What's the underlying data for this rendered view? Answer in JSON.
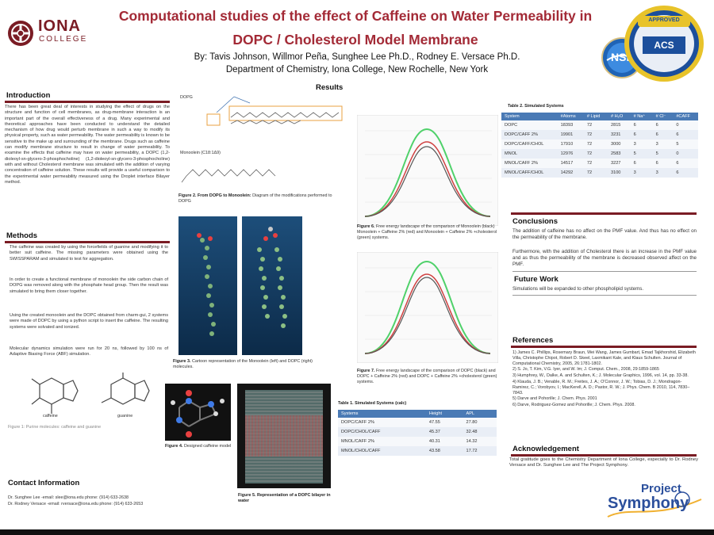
{
  "header": {
    "title_line1": "Computational studies of the effect of Caffeine on Water Permeability in",
    "title_line2": "DOPC / Cholesterol Model Membrane",
    "authors": "By: Tavis Johnson, Willmor Peña, Sunghee Lee Ph.D., Rodney E. Versace Ph.D.",
    "department": "Department of Chemistry, Iona College, New Rochelle, New York",
    "logo_left_line1": "IONA",
    "logo_left_line2": "COLLEGE",
    "logo_acs_text": "ACS",
    "logo_nsf_text": "NSF",
    "logo_approved_text": "APPROVED"
  },
  "introduction": {
    "title": "Introduction",
    "text": "There has been great deal of interests in studying the effect of drugs on the structure and function of cell membranes, as drug-membrane interaction is an important part of the overall effectiveness of a drug. Many experimental and theoretical approaches have been conducted to understand the detailed mechanism of how drug would perturb membrane in such a way to modify its physical property, such as water permeability. The water permeability is known to be sensitive to the make up and surrounding of the membrane. Drugs such as caffeine can modify membrane structure to result in change of water permeability. To examine the effects that caffeine may have on water permeability, a DOPC (1,2-dioleoyl-sn-glycero-3-phosphocholine) (1,2-dioleoyl-sn-glycero-3-phosphocholine) with and without Cholesterol membrane was simulated with the addition of varying concentration of caffeine solution. These results will provide a useful comparison to the experimental water permeability measured using the Droplet interface Bilayer method."
  },
  "methods": {
    "title": "Methods",
    "p1": "The caffeine was created by using the forcefields of guanine and modifying it to better suit caffeine. The missing parameters were obtained using the SWISSPARAM and simulated to test for aggregation.",
    "p2": "In order to create a functional membrane of monoolein the side carbon chain of DOPG was removed along with the phosphate head group. Then the result was simulated to bring them closer together.",
    "p3": "Using the created monoolein and the DOPC obtained from charm-gui, 2 systems were made of DOPC by using a python script to insert the caffeine. The resulting systems were solvated and ionized.",
    "p4": "Molecular dynamics simulation were run for 20 ns, followed by 100 ns of Adaptive Biasing Force (ABF) simulation.",
    "mol1": "caffeine",
    "mol2": "guanine",
    "fig1_caption": "Figure 1: Purine molecules: caffeine and guanine"
  },
  "contact": {
    "title": "Contact Information",
    "line1": "Dr. Sunghee Lee -email: slee@iona.edu phone: (914) 633-2638",
    "line2": "Dr. Rodney Versace -email: rversace@iona.edu phone: (914) 633-2653"
  },
  "results": {
    "title": "Results",
    "fig2_label_top": "DOPG",
    "fig2_label_bottom": "Monoolein (C18:1Δ9)",
    "fig2_caption_bold": "Figure 2. From DOPG to Monoolein:",
    "fig2_caption": " Diagram of the modifications performed to DOPG",
    "fig3_caption_bold": "Figure 3.",
    "fig3_caption": " Cartoon representation of the Monoolein (left) and DOPC (right) molecules.",
    "fig4_caption_bold": "Figure 4.",
    "fig4_caption": " Designed caffeine model",
    "fig5_caption_bold": "Figure 5. Representation of a DOPC bilayer in water",
    "fig6_caption_bold": "Figure 6.",
    "fig6_caption": " Free energy landscape of the comparison of Monoolein (black) Monoolein + Caffeine 2% (red) and Monoolein + Caffeine 2% +cholesterol (green) systems.",
    "fig7_caption_bold": "Figure 7.",
    "fig7_caption": " Free energy landscape of the comparison of DOPC (black) and DOPC + Caffeine 2% (red) and DOPC + Caffeine 2% +cholesterol (green) systems."
  },
  "table1": {
    "title": "Table 1. Simulated Systems (calc)",
    "headers": [
      "Systems",
      "Height",
      "APL"
    ],
    "rows": [
      [
        "DOPC/CAFF 2%",
        "47.55",
        "27.80"
      ],
      [
        "DOPC/CHOL/CAFF",
        "45.37",
        "32.48"
      ],
      [
        "MNOL/CAFF 2%",
        "40.31",
        "14.32"
      ],
      [
        "MNOL/CHOL/CAFF",
        "43.58",
        "17.72"
      ]
    ]
  },
  "table2": {
    "title": "Table 2. Simulated Systems",
    "headers": [
      "System",
      "#Atoms",
      "# Lipid",
      "# H₂O",
      "# Na⁺",
      "# Cl⁻",
      "#CAFF"
    ],
    "rows": [
      [
        "DOPC",
        "18393",
        "72",
        "2815",
        "6",
        "6",
        "0"
      ],
      [
        "DOPC/CAFF 2%",
        "19901",
        "72",
        "3231",
        "6",
        "6",
        "6"
      ],
      [
        "DOPC/CAFF/CHOL",
        "17910",
        "72",
        "3000",
        "3",
        "3",
        "5"
      ],
      [
        "MNOL",
        "12976",
        "72",
        "2583",
        "5",
        "5",
        "0"
      ],
      [
        "MNOL/CAFF 2%",
        "14517",
        "72",
        "3227",
        "6",
        "6",
        "6"
      ],
      [
        "MNOL/CAFF/CHOL",
        "14292",
        "72",
        "3100",
        "3",
        "3",
        "6"
      ]
    ]
  },
  "conclusions": {
    "title": "Conclusions",
    "p1": "The addition of caffeine has no affect on the PMF value. And thus has no effect on the permeability of the membrane.",
    "p2": "Furthermore, with the addition of Cholesterol there is an increase in the PMF value and as thus the permeability of the membrane is decreased observed affect on the PMF."
  },
  "future_work": {
    "title": "Future Work",
    "text": "Simulations will be expanded to other phospholipid systems."
  },
  "references": {
    "title": "References",
    "items": [
      "1)  James C. Phillips, Rosemary Braun, Wei Wang, James Gumbart, Emad Tajkhorshid, Elizabeth Villa, Christophe Chipot, Robert D. Skeel, Laxmikant Kale, and Klaus Schulten. Journal of Computational Chemistry, 2005, 26:1781-1802.",
      "2)  S. Jo, T. Kim, V.G. Iyer, and W. Im; J. Comput. Chem., 2008, 29:1859-1865",
      "3)  Humphrey, W., Dalke, A. and Schulten, K.; J. Molecular Graphics, 1996, vol. 14, pp. 33-38.",
      "4)  Klauda, J. B.; Venable, R. M.; Freites, J. A.; O'Connor, J. W.; Tobias, D. J.; Mondragon-Ramirez, C.; Vorobyov, I.; MacKerell, A. D.; Pastor, R. W.; J. Phys. Chem. B 2010, 114, 7830–7843.",
      "5)  Darve and Pohorille; J. Chem. Phys. 2001",
      "6)  Darve, Rodriguez-Gomez and Pohorille; J. Chem. Phys. 2008."
    ]
  },
  "acknowledgement": {
    "title": "Acknowledgement",
    "text": "Total gratitude goes to the Chemistry Department of Iona College, especially to Dr. Rodney Versace and Dr. Sunghee Lee and The Project Symphony."
  },
  "footer_logo": {
    "line1": "Project",
    "line2": "Symphony"
  },
  "colors": {
    "title": "#7a1c24",
    "rule": "#7a1c24",
    "table_header": "#4a7ab5",
    "blue_text": "#1f3c88"
  }
}
